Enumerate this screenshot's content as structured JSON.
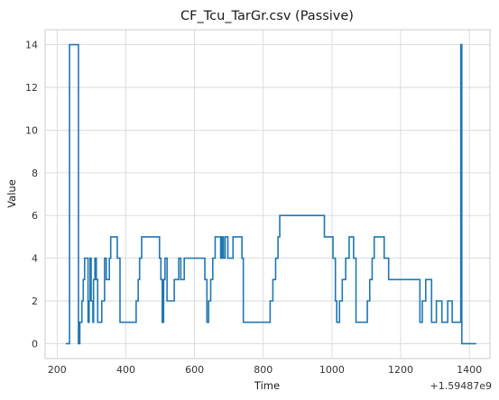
{
  "chart_data": {
    "type": "line",
    "drawstyle": "steps-post",
    "title": "CF_Tcu_TarGr.csv (Passive)",
    "xlabel": "Time",
    "ylabel": "Value",
    "x_offset_label": "+1.59487e9",
    "xlim": [
      165,
      1460
    ],
    "ylim": [
      -0.7,
      14.7
    ],
    "xticks": [
      200,
      400,
      600,
      800,
      1000,
      1200,
      1400
    ],
    "yticks": [
      0,
      2,
      4,
      6,
      8,
      10,
      12,
      14
    ],
    "grid": true,
    "line_color": "#1f77b4",
    "series": [
      {
        "x": [
          225,
          236,
          262,
          266,
          272,
          276,
          280,
          283,
          290,
          293,
          296,
          299,
          304,
          306,
          310,
          314,
          318,
          325,
          330,
          338,
          343,
          348,
          352,
          356,
          362,
          369,
          375,
          383,
          386,
          392,
          398,
          404,
          430,
          436,
          440,
          446,
          450,
          460,
          498,
          502,
          506,
          510,
          514,
          520,
          530,
          541,
          554,
          560,
          570,
          630,
          636,
          641,
          647,
          653,
          660,
          676,
          680,
          684,
          689,
          697,
          702,
          712,
          720,
          738,
          742,
          772,
          820,
          828,
          830,
          833,
          836,
          843,
          848,
          858,
          864,
          978,
          983,
          1003,
          1010,
          1014,
          1018,
          1022,
          1030,
          1040,
          1050,
          1063,
          1070,
          1078,
          1085,
          1090,
          1103,
          1110,
          1117,
          1123,
          1127,
          1137,
          1152,
          1165,
          1170,
          1180,
          1256,
          1260,
          1263,
          1268,
          1273,
          1286,
          1290,
          1298,
          1304,
          1311,
          1320,
          1337,
          1350,
          1353,
          1375,
          1378,
          1388,
          1405,
          1408,
          1412,
          1415,
          1420
        ],
        "y": [
          0,
          14,
          0,
          1,
          2,
          3,
          4,
          4,
          1,
          2,
          4,
          2,
          1,
          3,
          4,
          3,
          1,
          1,
          2,
          4,
          3,
          3,
          4,
          5,
          5,
          5,
          4,
          1,
          1,
          1,
          1,
          1,
          2,
          3,
          4,
          5,
          5,
          5,
          4,
          3,
          1,
          3,
          4,
          2,
          2,
          3,
          4,
          3,
          4,
          3,
          1,
          2,
          3,
          4,
          5,
          4,
          5,
          4,
          5,
          4,
          4,
          5,
          5,
          4,
          1,
          1,
          2,
          3,
          3,
          3,
          4,
          5,
          6,
          6,
          6,
          5,
          5,
          4,
          2,
          1,
          1,
          2,
          3,
          4,
          5,
          4,
          1,
          1,
          1,
          1,
          2,
          3,
          4,
          5,
          5,
          5,
          4,
          3,
          3,
          3,
          1,
          1,
          2,
          2,
          3,
          3,
          1,
          1,
          2,
          2,
          1,
          2,
          1,
          1,
          14,
          0,
          0,
          0,
          0,
          0,
          0,
          0
        ]
      }
    ]
  }
}
